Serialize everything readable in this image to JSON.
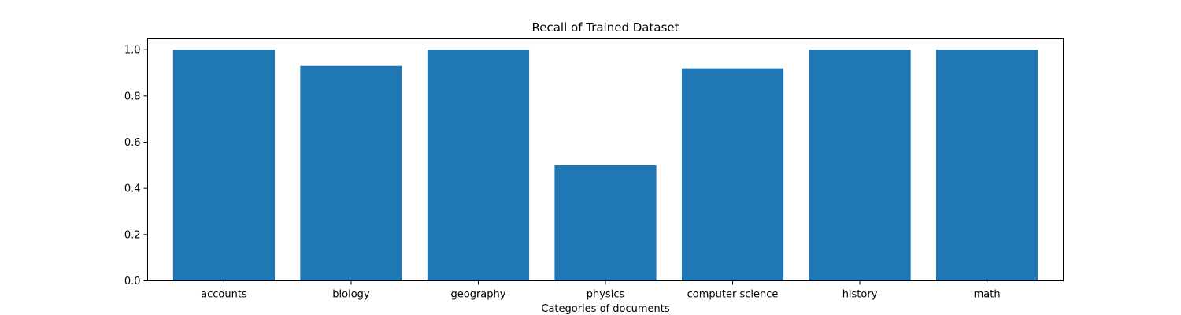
{
  "chart_data": {
    "type": "bar",
    "title": "Recall of Trained Dataset",
    "xlabel": "Categories of documents",
    "ylabel": "",
    "categories": [
      "accounts",
      "biology",
      "geography",
      "physics",
      "computer science",
      "history",
      "math"
    ],
    "values": [
      1.0,
      0.93,
      1.0,
      0.5,
      0.92,
      1.0,
      1.0
    ],
    "ylim": [
      0,
      1.05
    ],
    "yticks": [
      "0.0",
      "0.2",
      "0.4",
      "0.6",
      "0.8",
      "1.0"
    ],
    "grid": false,
    "bar_color": "#1f77b4"
  }
}
